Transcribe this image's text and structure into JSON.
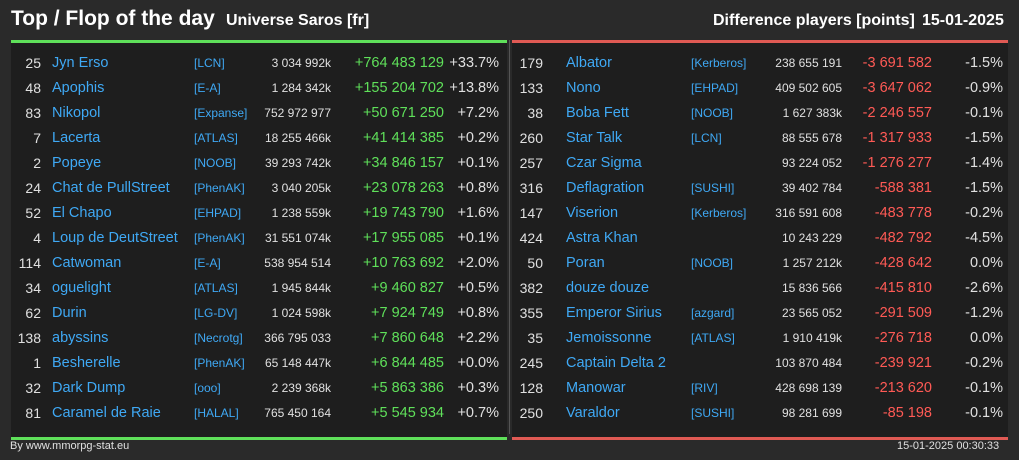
{
  "header": {
    "title": "Top / Flop of the day",
    "server": "Universe Saros [fr]",
    "metric": "Difference players [points]",
    "date": "15-01-2025"
  },
  "colors": {
    "positive": "#5fe05a",
    "negative": "#ff5a55",
    "link": "#3fa9f5",
    "background": "#2a2a2a",
    "panel": "#1e1e1e"
  },
  "top": [
    {
      "rank": "25",
      "name": "Jyn Erso",
      "ally": "[LCN]",
      "points": "3 034 992k",
      "diff": "+764 483 129",
      "pct": "+33.7%"
    },
    {
      "rank": "48",
      "name": "Apophis",
      "ally": "[E-A]",
      "points": "1 284 342k",
      "diff": "+155 204 702",
      "pct": "+13.8%"
    },
    {
      "rank": "83",
      "name": "Nikopol",
      "ally": "[Expanse]",
      "points": "752 972 977",
      "diff": "+50 671 250",
      "pct": "+7.2%"
    },
    {
      "rank": "7",
      "name": "Lacerta",
      "ally": "[ATLAS]",
      "points": "18 255 466k",
      "diff": "+41 414 385",
      "pct": "+0.2%"
    },
    {
      "rank": "2",
      "name": "Popeye",
      "ally": "[NOOB]",
      "points": "39 293 742k",
      "diff": "+34 846 157",
      "pct": "+0.1%"
    },
    {
      "rank": "24",
      "name": "Chat de PullStreet",
      "ally": "[PhenAK]",
      "points": "3 040 205k",
      "diff": "+23 078 263",
      "pct": "+0.8%"
    },
    {
      "rank": "52",
      "name": "El Chapo",
      "ally": "[EHPAD]",
      "points": "1 238 559k",
      "diff": "+19 743 790",
      "pct": "+1.6%"
    },
    {
      "rank": "4",
      "name": "Loup de DeutStreet",
      "ally": "[PhenAK]",
      "points": "31 551 074k",
      "diff": "+17 955 085",
      "pct": "+0.1%"
    },
    {
      "rank": "114",
      "name": "Catwoman",
      "ally": "[E-A]",
      "points": "538 954 514",
      "diff": "+10 763 692",
      "pct": "+2.0%"
    },
    {
      "rank": "34",
      "name": "oguelight",
      "ally": "[ATLAS]",
      "points": "1 945 844k",
      "diff": "+9 460 827",
      "pct": "+0.5%"
    },
    {
      "rank": "62",
      "name": "Durin",
      "ally": "[LG-DV]",
      "points": "1 024 598k",
      "diff": "+7 924 749",
      "pct": "+0.8%"
    },
    {
      "rank": "138",
      "name": "abyssins",
      "ally": "[Necrotg]",
      "points": "366 795 033",
      "diff": "+7 860 648",
      "pct": "+2.2%"
    },
    {
      "rank": "1",
      "name": "Besherelle",
      "ally": "[PhenAK]",
      "points": "65 148 447k",
      "diff": "+6 844 485",
      "pct": "+0.0%"
    },
    {
      "rank": "32",
      "name": "Dark Dump",
      "ally": "[ooo]",
      "points": "2 239 368k",
      "diff": "+5 863 386",
      "pct": "+0.3%"
    },
    {
      "rank": "81",
      "name": "Caramel de Raie",
      "ally": "[HALAL]",
      "points": "765 450 164",
      "diff": "+5 545 934",
      "pct": "+0.7%"
    }
  ],
  "flop": [
    {
      "rank": "179",
      "name": "Albator",
      "ally": "[Kerberos]",
      "points": "238 655 191",
      "diff": "-3 691 582",
      "pct": "-1.5%"
    },
    {
      "rank": "133",
      "name": "Nono",
      "ally": "[EHPAD]",
      "points": "409 502 605",
      "diff": "-3 647 062",
      "pct": "-0.9%"
    },
    {
      "rank": "38",
      "name": "Boba Fett",
      "ally": "[NOOB]",
      "points": "1 627 383k",
      "diff": "-2 246 557",
      "pct": "-0.1%"
    },
    {
      "rank": "260",
      "name": "Star Talk",
      "ally": "[LCN]",
      "points": "88 555 678",
      "diff": "-1 317 933",
      "pct": "-1.5%"
    },
    {
      "rank": "257",
      "name": "Czar Sigma",
      "ally": "",
      "points": "93 224 052",
      "diff": "-1 276 277",
      "pct": "-1.4%"
    },
    {
      "rank": "316",
      "name": "Deflagration",
      "ally": "[SUSHI]",
      "points": "39 402 784",
      "diff": "-588 381",
      "pct": "-1.5%"
    },
    {
      "rank": "147",
      "name": "Viserion",
      "ally": "[Kerberos]",
      "points": "316 591 608",
      "diff": "-483 778",
      "pct": "-0.2%"
    },
    {
      "rank": "424",
      "name": "Astra Khan",
      "ally": "",
      "points": "10 243 229",
      "diff": "-482 792",
      "pct": "-4.5%"
    },
    {
      "rank": "50",
      "name": "Poran",
      "ally": "[NOOB]",
      "points": "1 257 212k",
      "diff": "-428 642",
      "pct": "0.0%"
    },
    {
      "rank": "382",
      "name": "douze douze",
      "ally": "",
      "points": "15 836 566",
      "diff": "-415 810",
      "pct": "-2.6%"
    },
    {
      "rank": "355",
      "name": "Emperor Sirius",
      "ally": "[azgard]",
      "points": "23 565 052",
      "diff": "-291 509",
      "pct": "-1.2%"
    },
    {
      "rank": "35",
      "name": "Jemoissonne",
      "ally": "[ATLAS]",
      "points": "1 910 419k",
      "diff": "-276 718",
      "pct": "0.0%"
    },
    {
      "rank": "245",
      "name": "Captain Delta 2",
      "ally": "",
      "points": "103 870 484",
      "diff": "-239 921",
      "pct": "-0.2%"
    },
    {
      "rank": "128",
      "name": "Manowar",
      "ally": "[RIV]",
      "points": "428 698 139",
      "diff": "-213 620",
      "pct": "-0.1%"
    },
    {
      "rank": "250",
      "name": "Varaldor",
      "ally": "[SUSHI]",
      "points": "98 281 699",
      "diff": "-85 198",
      "pct": "-0.1%"
    }
  ],
  "footer": {
    "source": "By www.mmorpg-stat.eu",
    "timestamp": "15-01-2025 00:30:33"
  }
}
